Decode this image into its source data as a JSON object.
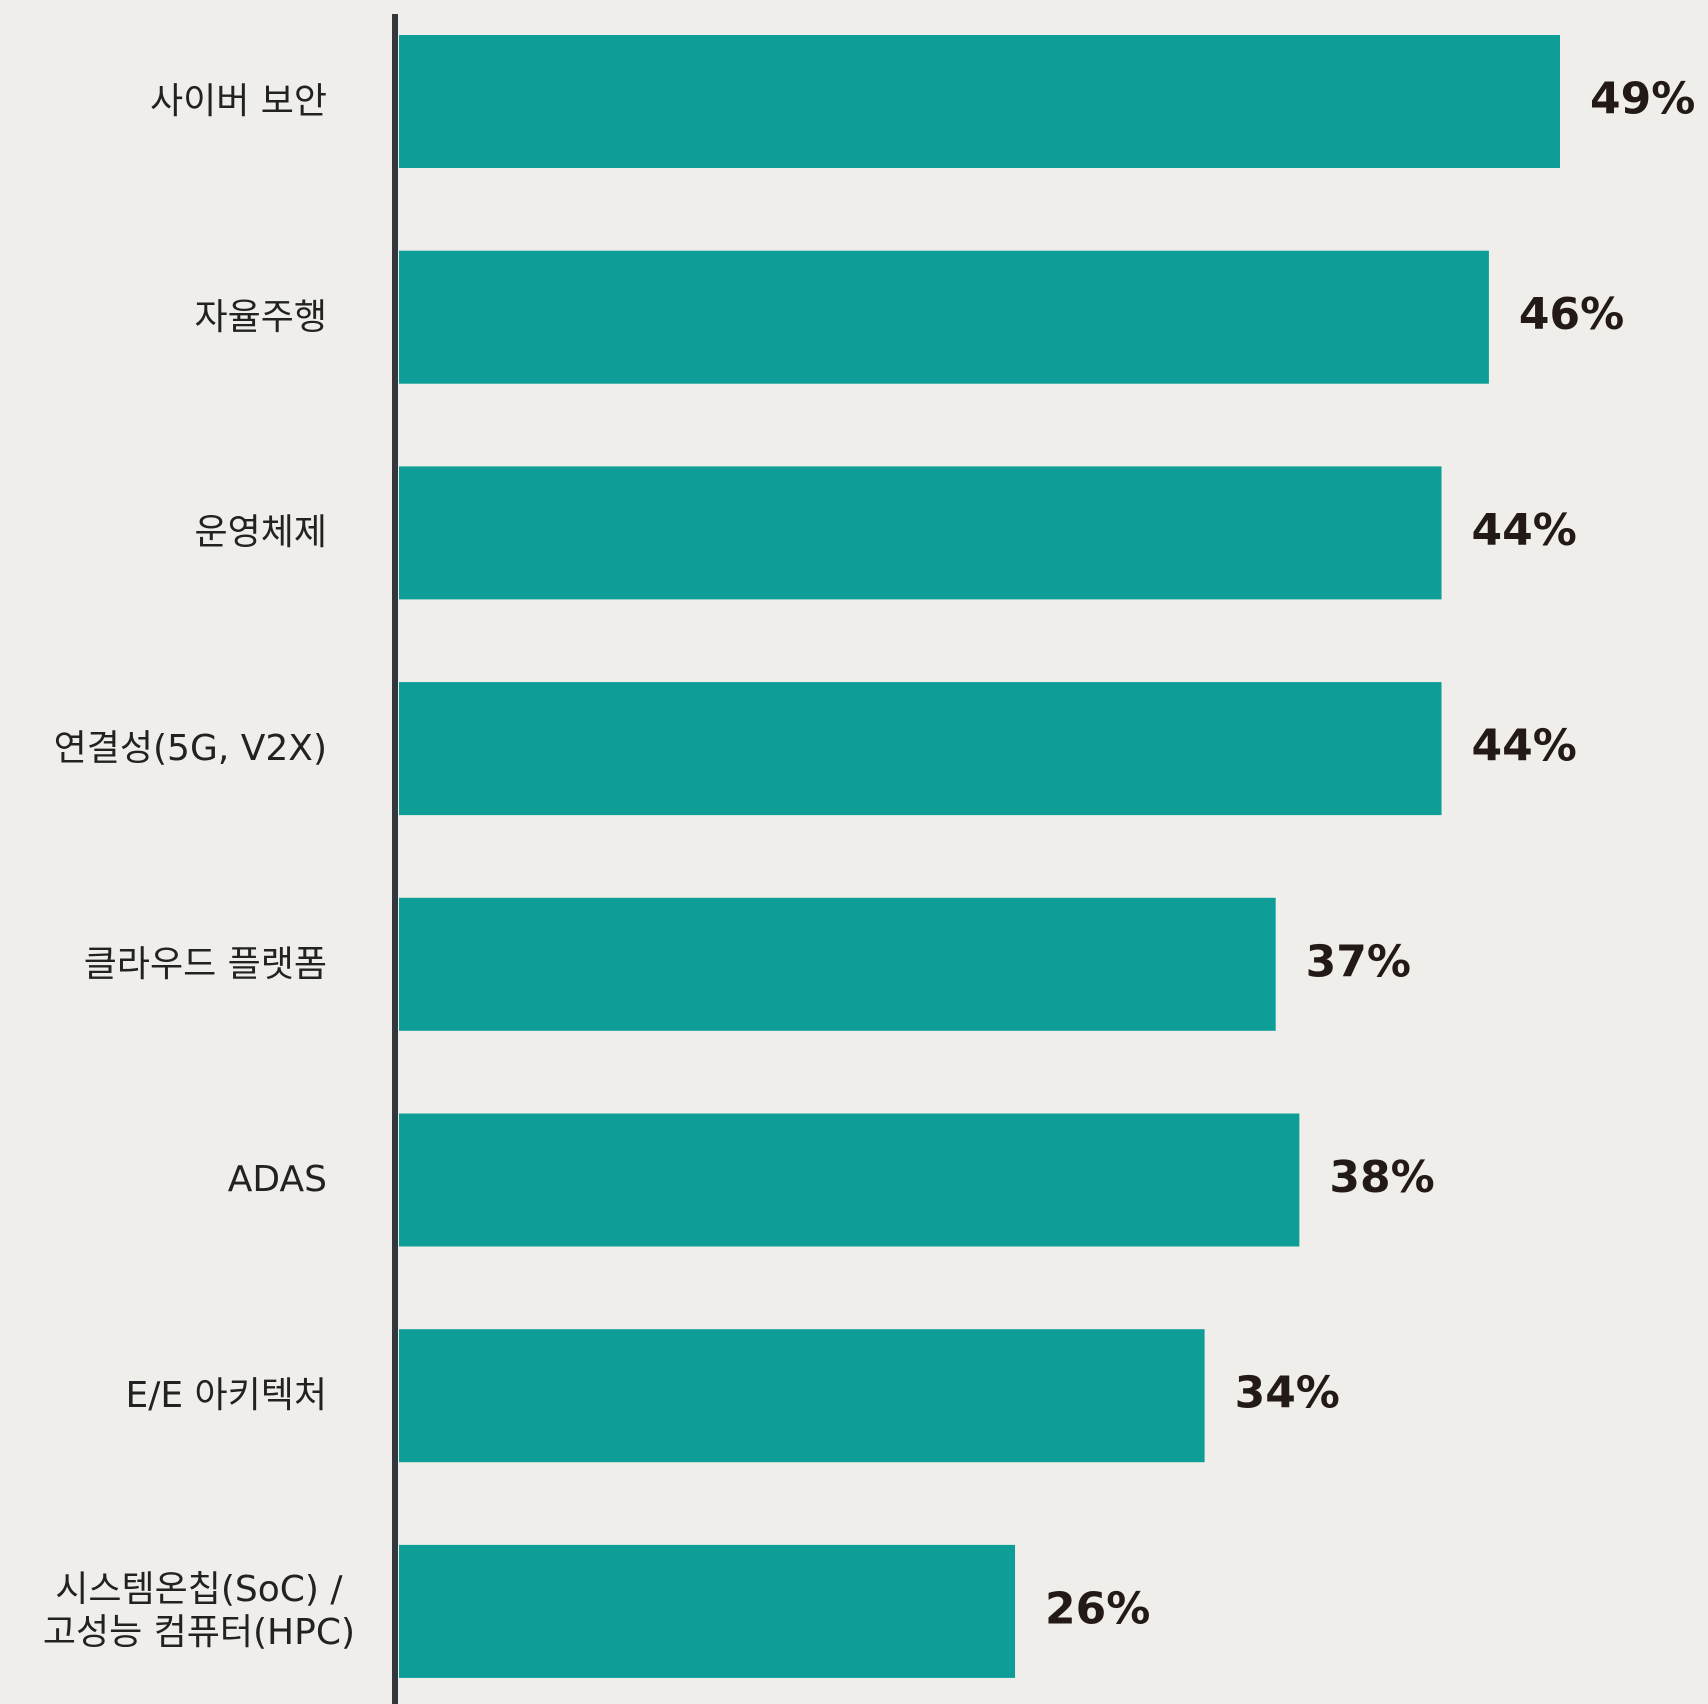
{
  "chart_data": {
    "type": "bar",
    "orientation": "horizontal",
    "categories": [
      "사이버 보안",
      "자율주행",
      "운영체제",
      "연결성(5G, V2X)",
      "클라우드 플랫폼",
      "ADAS",
      "E/E 아키텍처",
      "시스템온칩(SoC) /\n고성능 컴퓨터(HPC)"
    ],
    "values": [
      49,
      46,
      44,
      44,
      37,
      38,
      34,
      26
    ],
    "value_labels": [
      "49%",
      "46%",
      "44%",
      "44%",
      "37%",
      "38%",
      "34%",
      "26%"
    ],
    "color": "#0e9e97"
  }
}
